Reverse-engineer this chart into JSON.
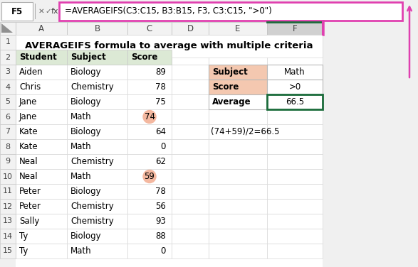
{
  "title": "AVERAGEIFS formula to average with multiple criteria",
  "formula_bar_cell": "F5",
  "formula_bar_text": "=AVERAGEIFS(C3:C15, B3:B15, F3, C3:C15, \">0\")",
  "main_header_bg": "#dce9d5",
  "data_rows": [
    [
      "Aiden",
      "Biology",
      "89"
    ],
    [
      "Chris",
      "Chemistry",
      "78"
    ],
    [
      "Jane",
      "Biology",
      "75"
    ],
    [
      "Jane",
      "Math",
      "74"
    ],
    [
      "Kate",
      "Biology",
      "64"
    ],
    [
      "Kate",
      "Math",
      "0"
    ],
    [
      "Neal",
      "Chemistry",
      "62"
    ],
    [
      "Neal",
      "Math",
      "59"
    ],
    [
      "Peter",
      "Biology",
      "78"
    ],
    [
      "Peter",
      "Chemistry",
      "56"
    ],
    [
      "Sally",
      "Chemistry",
      "93"
    ],
    [
      "Ty",
      "Biology",
      "88"
    ],
    [
      "Ty",
      "Math",
      "0"
    ]
  ],
  "highlighted_scores": [
    3,
    7
  ],
  "highlight_circle_color": "#f4b8a0",
  "side_table_rows": [
    "Subject",
    "Score",
    "Average"
  ],
  "side_table_values": [
    "Math",
    ">0",
    "66.5"
  ],
  "side_table_e_bg": "#f4c8b0",
  "side_table_f5_border": "#1a6b3a",
  "annotation_text": "(74+59)/2=66.5",
  "formula_bar_border": "#e040b0",
  "col_f_header_bg": "#d0d0d0",
  "col_f_header_border_top": "#1a6b3a",
  "grid_color": "#d0d0d0",
  "row_num_bg": "#f2f2f2",
  "col_header_bg": "#f2f2f2",
  "pink": "#e040b0"
}
